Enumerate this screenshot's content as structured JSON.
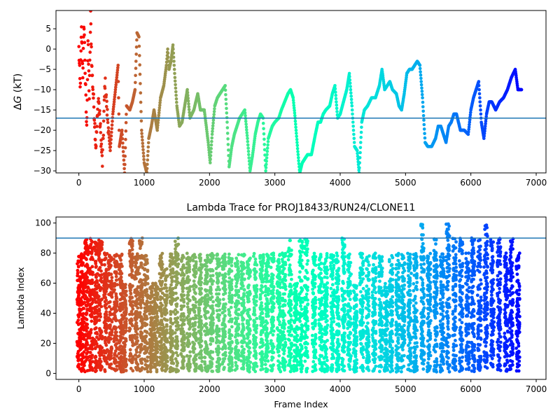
{
  "chart_data": [
    {
      "type": "scatter",
      "title": "",
      "xlabel": "",
      "ylabel_italic": "G",
      "ylabel_prefix": "Δ",
      "ylabel_suffix": " (kT)",
      "xlim": [
        -350,
        7150
      ],
      "ylim": [
        -30.5,
        9.5
      ],
      "xticks": [
        0,
        1000,
        2000,
        3000,
        4000,
        5000,
        6000,
        7000
      ],
      "yticks": [
        -30,
        -25,
        -20,
        -15,
        -10,
        -5,
        0,
        5
      ],
      "hline": -17,
      "hline_color": "#1f77b4",
      "colormap": "rainbow (reversed: red at frame 0, violet at last frame)",
      "trace_points": [
        [
          0,
          0
        ],
        [
          20,
          -10
        ],
        [
          40,
          4.5
        ],
        [
          60,
          -6
        ],
        [
          80,
          6.5
        ],
        [
          100,
          -8
        ],
        [
          120,
          -20
        ],
        [
          140,
          2
        ],
        [
          160,
          -12
        ],
        [
          180,
          8
        ],
        [
          200,
          -5
        ],
        [
          230,
          -14
        ],
        [
          260,
          -24
        ],
        [
          300,
          -12
        ],
        [
          330,
          -20
        ],
        [
          360,
          -28
        ],
        [
          400,
          -8
        ],
        [
          440,
          -17
        ],
        [
          480,
          -25
        ],
        [
          520,
          -16
        ],
        [
          560,
          -10
        ],
        [
          600,
          -4
        ],
        [
          620,
          -24
        ],
        [
          660,
          -20
        ],
        [
          700,
          -30.5
        ],
        [
          730,
          -14
        ],
        [
          780,
          -15
        ],
        [
          820,
          -13
        ],
        [
          860,
          -10
        ],
        [
          890,
          4
        ],
        [
          920,
          3
        ],
        [
          960,
          -20
        ],
        [
          1000,
          -28
        ],
        [
          1040,
          -30.5
        ],
        [
          1070,
          -22
        ],
        [
          1110,
          -19
        ],
        [
          1150,
          -15
        ],
        [
          1200,
          -20
        ],
        [
          1250,
          -12
        ],
        [
          1300,
          -9
        ],
        [
          1340,
          -4
        ],
        [
          1360,
          0
        ],
        [
          1380,
          -5
        ],
        [
          1410,
          -3
        ],
        [
          1440,
          1
        ],
        [
          1470,
          -7
        ],
        [
          1500,
          -14
        ],
        [
          1540,
          -19
        ],
        [
          1580,
          -18
        ],
        [
          1620,
          -14
        ],
        [
          1660,
          -10
        ],
        [
          1700,
          -17
        ],
        [
          1760,
          -15
        ],
        [
          1820,
          -11
        ],
        [
          1860,
          -15
        ],
        [
          1920,
          -15
        ],
        [
          1980,
          -23
        ],
        [
          2010,
          -28
        ],
        [
          2040,
          -21
        ],
        [
          2080,
          -14
        ],
        [
          2120,
          -12
        ],
        [
          2160,
          -11
        ],
        [
          2200,
          -10
        ],
        [
          2240,
          -9
        ],
        [
          2270,
          -18
        ],
        [
          2300,
          -29
        ],
        [
          2340,
          -24
        ],
        [
          2380,
          -21
        ],
        [
          2420,
          -19
        ],
        [
          2460,
          -17
        ],
        [
          2500,
          -16
        ],
        [
          2540,
          -15
        ],
        [
          2580,
          -22
        ],
        [
          2620,
          -30
        ],
        [
          2660,
          -26
        ],
        [
          2700,
          -21
        ],
        [
          2740,
          -18
        ],
        [
          2780,
          -16
        ],
        [
          2820,
          -17
        ],
        [
          2860,
          -30
        ],
        [
          2900,
          -22
        ],
        [
          2960,
          -19
        ],
        [
          3000,
          -18
        ],
        [
          3060,
          -17
        ],
        [
          3100,
          -15
        ],
        [
          3150,
          -13
        ],
        [
          3200,
          -11
        ],
        [
          3240,
          -10
        ],
        [
          3280,
          -12
        ],
        [
          3310,
          -17
        ],
        [
          3340,
          -23
        ],
        [
          3380,
          -30.5
        ],
        [
          3420,
          -28
        ],
        [
          3460,
          -27
        ],
        [
          3500,
          -26
        ],
        [
          3560,
          -26
        ],
        [
          3620,
          -21
        ],
        [
          3660,
          -18
        ],
        [
          3700,
          -18
        ],
        [
          3740,
          -16
        ],
        [
          3780,
          -15
        ],
        [
          3840,
          -14
        ],
        [
          3880,
          -11
        ],
        [
          3920,
          -9
        ],
        [
          3960,
          -17
        ],
        [
          4000,
          -16
        ],
        [
          4050,
          -13
        ],
        [
          4100,
          -10
        ],
        [
          4140,
          -6
        ],
        [
          4180,
          -14
        ],
        [
          4220,
          -24
        ],
        [
          4260,
          -25
        ],
        [
          4290,
          -30.5
        ],
        [
          4330,
          -18
        ],
        [
          4370,
          -15
        ],
        [
          4420,
          -14
        ],
        [
          4480,
          -12
        ],
        [
          4540,
          -12
        ],
        [
          4600,
          -9
        ],
        [
          4640,
          -5
        ],
        [
          4680,
          -10
        ],
        [
          4720,
          -9
        ],
        [
          4760,
          -8
        ],
        [
          4800,
          -10
        ],
        [
          4860,
          -11
        ],
        [
          4900,
          -14
        ],
        [
          4940,
          -15
        ],
        [
          4980,
          -11
        ],
        [
          5020,
          -6
        ],
        [
          5060,
          -5
        ],
        [
          5100,
          -5
        ],
        [
          5140,
          -4
        ],
        [
          5180,
          -3
        ],
        [
          5220,
          -4
        ],
        [
          5260,
          -12
        ],
        [
          5300,
          -23
        ],
        [
          5340,
          -24
        ],
        [
          5400,
          -24
        ],
        [
          5460,
          -22
        ],
        [
          5500,
          -19
        ],
        [
          5540,
          -19
        ],
        [
          5580,
          -21
        ],
        [
          5620,
          -23
        ],
        [
          5660,
          -19
        ],
        [
          5700,
          -18
        ],
        [
          5740,
          -16
        ],
        [
          5780,
          -16
        ],
        [
          5840,
          -20
        ],
        [
          5900,
          -20
        ],
        [
          5960,
          -21
        ],
        [
          6000,
          -15
        ],
        [
          6040,
          -12
        ],
        [
          6080,
          -10
        ],
        [
          6120,
          -8
        ],
        [
          6160,
          -18
        ],
        [
          6200,
          -22
        ],
        [
          6240,
          -16
        ],
        [
          6280,
          -13
        ],
        [
          6320,
          -13
        ],
        [
          6380,
          -15
        ],
        [
          6440,
          -13
        ],
        [
          6500,
          -12
        ],
        [
          6560,
          -10
        ],
        [
          6620,
          -7
        ],
        [
          6680,
          -5
        ],
        [
          6720,
          -10
        ],
        [
          6780,
          -10
        ]
      ]
    },
    {
      "type": "scatter",
      "title": "Lambda Trace for PROJ18433/RUN24/CLONE11",
      "xlabel": "Frame Index",
      "ylabel": "Lambda Index",
      "xlim": [
        -350,
        7150
      ],
      "ylim": [
        -4,
        104
      ],
      "xticks": [
        0,
        1000,
        2000,
        3000,
        4000,
        5000,
        6000,
        7000
      ],
      "yticks": [
        0,
        20,
        40,
        60,
        80,
        100
      ],
      "hline": 90,
      "hline_color": "#1f77b4",
      "colormap": "rainbow (reversed: red at frame 0, violet at last frame)",
      "columns": [
        [
          0,
          80,
          1
        ],
        [
          60,
          80,
          2
        ],
        [
          120,
          90,
          3
        ],
        [
          190,
          90,
          4
        ],
        [
          260,
          90,
          5
        ],
        [
          330,
          90,
          6
        ],
        [
          410,
          80,
          7
        ],
        [
          480,
          80,
          8
        ],
        [
          560,
          80,
          9
        ],
        [
          640,
          80,
          10
        ],
        [
          700,
          60,
          11
        ],
        [
          800,
          90,
          12
        ],
        [
          880,
          80,
          13
        ],
        [
          950,
          90,
          14
        ],
        [
          1030,
          80,
          15
        ],
        [
          1110,
          60,
          16
        ],
        [
          1180,
          60,
          17
        ],
        [
          1260,
          80,
          18
        ],
        [
          1330,
          70,
          19
        ],
        [
          1420,
          80,
          20
        ],
        [
          1500,
          90,
          21
        ],
        [
          1590,
          80,
          22
        ],
        [
          1680,
          80,
          23
        ],
        [
          1770,
          80,
          24
        ],
        [
          1860,
          80,
          25
        ],
        [
          1950,
          80,
          26
        ],
        [
          2030,
          80,
          27
        ],
        [
          2130,
          80,
          28
        ],
        [
          2220,
          80,
          29
        ],
        [
          2320,
          80,
          30
        ],
        [
          2420,
          80,
          31
        ],
        [
          2510,
          80,
          32
        ],
        [
          2600,
          80,
          33
        ],
        [
          2700,
          80,
          34
        ],
        [
          2800,
          80,
          35
        ],
        [
          2880,
          80,
          36
        ],
        [
          2960,
          80,
          37
        ],
        [
          3060,
          80,
          38
        ],
        [
          3140,
          80,
          39
        ],
        [
          3230,
          90,
          40
        ],
        [
          3320,
          60,
          41
        ],
        [
          3400,
          90,
          42
        ],
        [
          3480,
          90,
          43
        ],
        [
          3600,
          80,
          44
        ],
        [
          3700,
          80,
          45
        ],
        [
          3780,
          80,
          46
        ],
        [
          3880,
          80,
          47
        ],
        [
          3960,
          80,
          48
        ],
        [
          4050,
          90,
          49
        ],
        [
          4140,
          80,
          50
        ],
        [
          4230,
          60,
          51
        ],
        [
          4330,
          80,
          52
        ],
        [
          4420,
          80,
          53
        ],
        [
          4520,
          80,
          54
        ],
        [
          4620,
          80,
          55
        ],
        [
          4700,
          60,
          56
        ],
        [
          4780,
          80,
          57
        ],
        [
          4880,
          80,
          58
        ],
        [
          4960,
          80,
          59
        ],
        [
          5060,
          80,
          60
        ],
        [
          5150,
          80,
          61
        ],
        [
          5260,
          100,
          62
        ],
        [
          5360,
          80,
          63
        ],
        [
          5460,
          90,
          64
        ],
        [
          5560,
          80,
          65
        ],
        [
          5650,
          100,
          66
        ],
        [
          5750,
          90,
          67
        ],
        [
          5850,
          90,
          68
        ],
        [
          5950,
          80,
          69
        ],
        [
          6030,
          90,
          70
        ],
        [
          6130,
          90,
          71
        ],
        [
          6230,
          100,
          72
        ],
        [
          6330,
          90,
          73
        ],
        [
          6430,
          90,
          74
        ],
        [
          6540,
          80,
          75
        ],
        [
          6620,
          90,
          76
        ],
        [
          6720,
          80,
          77
        ]
      ]
    }
  ]
}
